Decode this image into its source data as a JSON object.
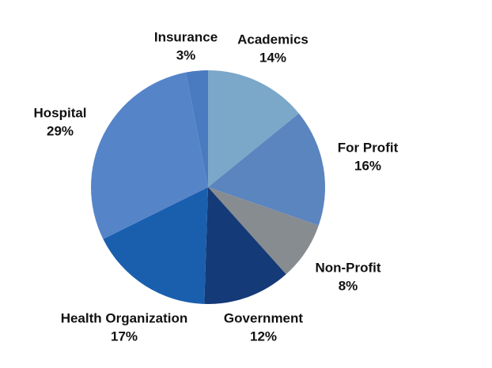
{
  "chart_data": {
    "type": "pie",
    "categories": [
      "Academics",
      "For Profit",
      "Non-Profit",
      "Government",
      "Health Organization",
      "Hospital",
      "Insurance"
    ],
    "values": [
      14,
      16,
      8,
      12,
      17,
      29,
      3
    ],
    "value_labels": [
      "14%",
      "16%",
      "8%",
      "12%",
      "17%",
      "29%",
      "3%"
    ],
    "colors": [
      "#7ba7c9",
      "#5a85bf",
      "#878c91",
      "#143a78",
      "#1a5fad",
      "#5585c8",
      "#4a7ac0"
    ]
  }
}
